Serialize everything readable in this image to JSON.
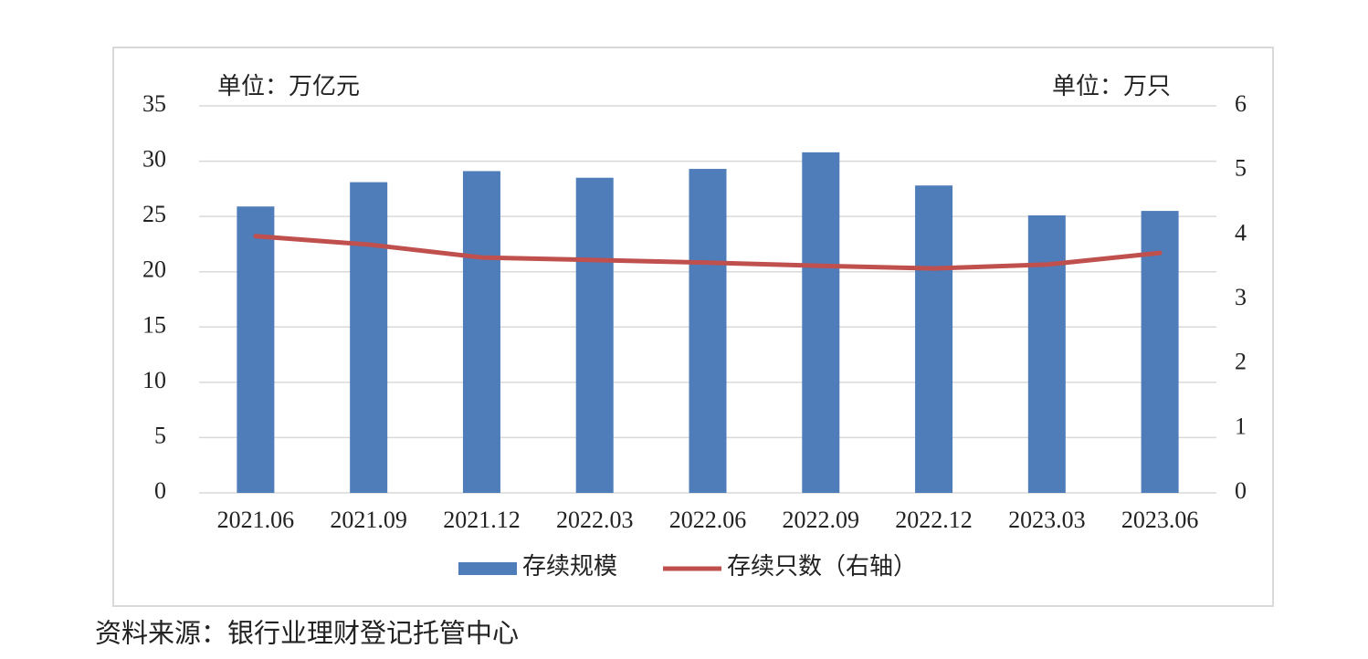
{
  "chart_data": {
    "type": "bar",
    "y_unit": "单位：万亿元",
    "y2_unit": "单位：万只",
    "categories": [
      "2021.06",
      "2021.09",
      "2021.12",
      "2022.03",
      "2022.06",
      "2022.09",
      "2022.12",
      "2023.03",
      "2023.06"
    ],
    "series": [
      {
        "name": "存续规模",
        "type": "bar",
        "color": "#4e7dba",
        "values": [
          25.9,
          28.1,
          29.1,
          28.5,
          29.3,
          30.8,
          27.8,
          25.1,
          25.5
        ]
      },
      {
        "name": "存续只数（右轴）",
        "type": "line",
        "axis": "y2",
        "color": "#c0504d",
        "values": [
          3.98,
          3.85,
          3.65,
          3.61,
          3.57,
          3.52,
          3.48,
          3.54,
          3.72
        ]
      }
    ],
    "ylim": [
      0,
      35
    ],
    "yticks": [
      0,
      5,
      10,
      15,
      20,
      25,
      30,
      35
    ],
    "y2lim": [
      0,
      6
    ],
    "y2ticks": [
      0,
      1,
      2,
      3,
      4,
      5,
      6
    ],
    "grid": true,
    "legend": "bottom"
  },
  "source": "资料来源：银行业理财登记托管中心"
}
